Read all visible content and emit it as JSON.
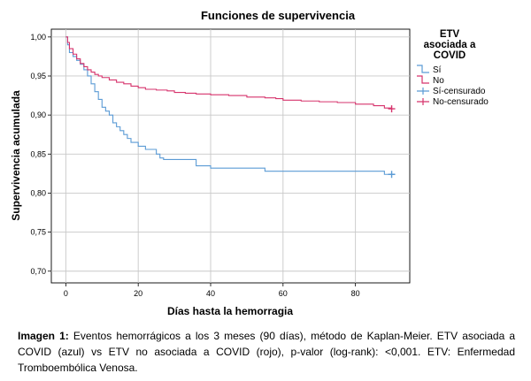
{
  "chart_data": {
    "type": "line",
    "title": "Funciones de supervivencia",
    "xlabel": "Días hasta la hemorragia",
    "ylabel": "Supervivencia acumulada",
    "xlim": [
      -4,
      95
    ],
    "ylim": [
      0.685,
      1.01
    ],
    "xticks": [
      0,
      20,
      40,
      60,
      80
    ],
    "xtick_labels": [
      "0",
      "20",
      "40",
      "60",
      "80"
    ],
    "yticks": [
      1.0,
      0.95,
      0.9,
      0.85,
      0.8,
      0.75,
      0.7
    ],
    "ytick_labels": [
      "1,00",
      "0,95",
      "0,90",
      "0,85",
      "0,80",
      "0,75",
      "0,70"
    ],
    "grid": true,
    "legend": {
      "title_lines": [
        "ETV",
        "asociada a",
        "COVID"
      ],
      "placement": "right",
      "entries": [
        "Sí",
        "No",
        "Sí-censurado",
        "No-censurado"
      ]
    },
    "series": [
      {
        "name": "Sí",
        "color": "#5b9bd5",
        "x": [
          0,
          0.5,
          1,
          2,
          3,
          4,
          5,
          6,
          7,
          8,
          9,
          10,
          11,
          12,
          13,
          14,
          15,
          16,
          17,
          18,
          20,
          22,
          25,
          26,
          27,
          30,
          33,
          36,
          40,
          45,
          50,
          55,
          60,
          65,
          70,
          75,
          80,
          85,
          88,
          90
        ],
        "y": [
          1.0,
          0.99,
          0.98,
          0.975,
          0.97,
          0.965,
          0.958,
          0.95,
          0.94,
          0.93,
          0.92,
          0.91,
          0.905,
          0.9,
          0.89,
          0.885,
          0.88,
          0.875,
          0.87,
          0.865,
          0.86,
          0.856,
          0.85,
          0.845,
          0.843,
          0.843,
          0.843,
          0.835,
          0.832,
          0.832,
          0.832,
          0.828,
          0.828,
          0.828,
          0.828,
          0.828,
          0.828,
          0.828,
          0.824,
          0.824
        ]
      },
      {
        "name": "No",
        "color": "#d6336c",
        "x": [
          0,
          0.5,
          1,
          2,
          3,
          4,
          5,
          6,
          7,
          8,
          9,
          10,
          12,
          14,
          16,
          18,
          20,
          22,
          25,
          28,
          30,
          33,
          36,
          40,
          45,
          50,
          55,
          58,
          60,
          65,
          70,
          75,
          80,
          85,
          88,
          90
        ],
        "y": [
          1.0,
          0.993,
          0.985,
          0.978,
          0.972,
          0.966,
          0.962,
          0.958,
          0.955,
          0.952,
          0.95,
          0.948,
          0.945,
          0.942,
          0.94,
          0.937,
          0.935,
          0.933,
          0.932,
          0.931,
          0.929,
          0.928,
          0.927,
          0.926,
          0.925,
          0.923,
          0.922,
          0.921,
          0.919,
          0.918,
          0.917,
          0.916,
          0.914,
          0.912,
          0.909,
          0.908
        ]
      }
    ],
    "censored_marks": [
      {
        "series": "Sí",
        "x": 90,
        "y": 0.824
      },
      {
        "series": "No",
        "x": 90,
        "y": 0.908
      }
    ]
  },
  "caption": {
    "bold_label": "Imagen 1:",
    "text": " Eventos hemorrágicos a los 3 meses (90 días), método de Kaplan-Meier. ETV asociada a COVID (azul) vs ETV no asociada a COVID (rojo), p-valor (log-rank): <0,001. ETV: Enfermedad Tromboembólica Venosa."
  }
}
